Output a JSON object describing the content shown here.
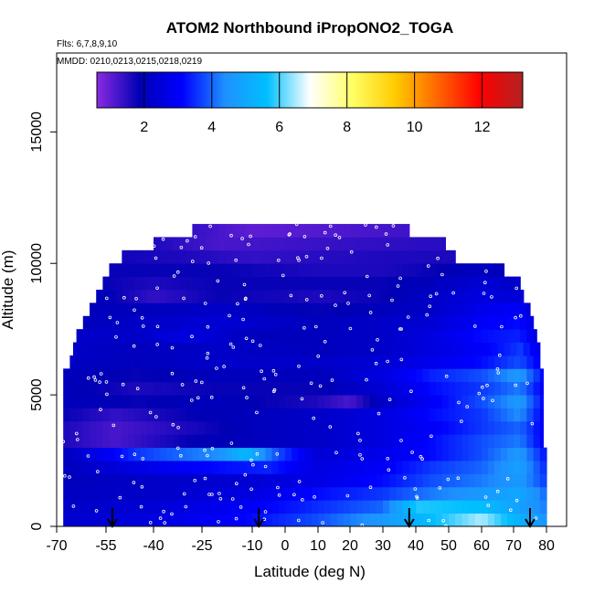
{
  "chart_data": {
    "type": "heatmap",
    "title": "ATOM2 Northbound iPropONO2_TOGA",
    "flights_label": "Flts: 6,7,8,9,10",
    "dates_label": "MMDD: 0210,0213,0215,0218,0219",
    "xlabel": "Latitude (deg N)",
    "ylabel": "Altitude (m)",
    "xlim": [
      -70,
      84
    ],
    "ylim": [
      0,
      18000
    ],
    "x_ticks": [
      -70,
      -55,
      -40,
      -25,
      -10,
      0,
      10,
      20,
      30,
      40,
      50,
      60,
      70,
      80
    ],
    "y_ticks": [
      0,
      5000,
      10000,
      15000
    ],
    "colorbar": {
      "range": [
        0.6,
        13.2
      ],
      "ticks": [
        2,
        4,
        6,
        8,
        10,
        12
      ],
      "colors": [
        "#8a2be2",
        "#0000b4",
        "#0000ff",
        "#1e90ff",
        "#00bfff",
        "#ffffff",
        "#ffff66",
        "#ffcc00",
        "#ff6600",
        "#ff0000",
        "#b22222"
      ]
    },
    "arrows_x": [
      -53,
      -8,
      38,
      75
    ],
    "altitude_bins": [
      {
        "base": 0,
        "top": 500,
        "lat_min": -68,
        "lat_max": 80,
        "profile": [
          [
            -68,
            2.3
          ],
          [
            -40,
            2.6
          ],
          [
            -10,
            3.2
          ],
          [
            10,
            3.8
          ],
          [
            30,
            4.6
          ],
          [
            45,
            5.6
          ],
          [
            60,
            6.5
          ],
          [
            72,
            5.2
          ],
          [
            80,
            4.5
          ]
        ]
      },
      {
        "base": 500,
        "top": 1000,
        "lat_min": -68,
        "lat_max": 80,
        "profile": [
          [
            -68,
            2.2
          ],
          [
            -40,
            2.4
          ],
          [
            -10,
            3.0
          ],
          [
            10,
            3.5
          ],
          [
            30,
            4.0
          ],
          [
            40,
            5.8
          ],
          [
            60,
            5.6
          ],
          [
            72,
            4.8
          ],
          [
            80,
            4.2
          ]
        ]
      },
      {
        "base": 1000,
        "top": 1500,
        "lat_min": -68,
        "lat_max": 80,
        "profile": [
          [
            -68,
            2.1
          ],
          [
            -40,
            2.2
          ],
          [
            -10,
            2.6
          ],
          [
            10,
            3.2
          ],
          [
            30,
            3.6
          ],
          [
            45,
            4.2
          ],
          [
            60,
            4.6
          ],
          [
            72,
            5.0
          ],
          [
            80,
            4.0
          ]
        ]
      },
      {
        "base": 1500,
        "top": 2000,
        "lat_min": -68,
        "lat_max": 80,
        "profile": [
          [
            -68,
            2.0
          ],
          [
            -40,
            2.2
          ],
          [
            -10,
            2.4
          ],
          [
            10,
            2.7
          ],
          [
            30,
            3.2
          ],
          [
            45,
            3.8
          ],
          [
            60,
            4.2
          ],
          [
            72,
            4.6
          ],
          [
            80,
            3.6
          ]
        ]
      },
      {
        "base": 2000,
        "top": 2500,
        "lat_min": -68,
        "lat_max": 80,
        "profile": [
          [
            -68,
            2.0
          ],
          [
            -40,
            2.8
          ],
          [
            -20,
            3.2
          ],
          [
            -5,
            3.4
          ],
          [
            10,
            2.6
          ],
          [
            30,
            3.0
          ],
          [
            45,
            3.6
          ],
          [
            60,
            4.0
          ],
          [
            72,
            4.8
          ],
          [
            80,
            3.4
          ]
        ]
      },
      {
        "base": 2500,
        "top": 3000,
        "lat_min": -68,
        "lat_max": 80,
        "profile": [
          [
            -68,
            2.0
          ],
          [
            -45,
            3.6
          ],
          [
            -20,
            4.4
          ],
          [
            -12,
            5.4
          ],
          [
            -4,
            4.0
          ],
          [
            10,
            2.4
          ],
          [
            30,
            2.8
          ],
          [
            45,
            3.2
          ],
          [
            60,
            3.8
          ],
          [
            72,
            4.6
          ],
          [
            80,
            3.2
          ]
        ]
      },
      {
        "base": 3000,
        "top": 3500,
        "lat_min": -68,
        "lat_max": 79,
        "profile": [
          [
            -68,
            1.6
          ],
          [
            -52,
            1.2
          ],
          [
            -30,
            1.8
          ],
          [
            -10,
            2.0
          ],
          [
            10,
            2.2
          ],
          [
            30,
            2.6
          ],
          [
            45,
            3.2
          ],
          [
            60,
            3.8
          ],
          [
            72,
            4.2
          ],
          [
            79,
            3.0
          ]
        ]
      },
      {
        "base": 3500,
        "top": 4000,
        "lat_min": -68,
        "lat_max": 79,
        "profile": [
          [
            -68,
            1.6
          ],
          [
            -52,
            1.2
          ],
          [
            -30,
            1.6
          ],
          [
            -10,
            2.0
          ],
          [
            10,
            2.2
          ],
          [
            30,
            2.6
          ],
          [
            45,
            3.0
          ],
          [
            60,
            3.6
          ],
          [
            72,
            4.0
          ],
          [
            79,
            3.0
          ]
        ]
      },
      {
        "base": 4000,
        "top": 4500,
        "lat_min": -68,
        "lat_max": 79,
        "profile": [
          [
            -68,
            1.8
          ],
          [
            -52,
            1.4
          ],
          [
            -30,
            1.8
          ],
          [
            -10,
            2.0
          ],
          [
            10,
            2.2
          ],
          [
            30,
            2.6
          ],
          [
            45,
            3.2
          ],
          [
            60,
            3.6
          ],
          [
            72,
            4.4
          ],
          [
            79,
            3.0
          ]
        ]
      },
      {
        "base": 4500,
        "top": 5000,
        "lat_min": -68,
        "lat_max": 79,
        "profile": [
          [
            -68,
            2.0
          ],
          [
            -45,
            1.8
          ],
          [
            -20,
            2.0
          ],
          [
            10,
            1.6
          ],
          [
            20,
            1.2
          ],
          [
            30,
            2.2
          ],
          [
            45,
            3.0
          ],
          [
            60,
            3.8
          ],
          [
            72,
            4.6
          ],
          [
            79,
            3.2
          ]
        ]
      },
      {
        "base": 5000,
        "top": 5500,
        "lat_min": -68,
        "lat_max": 79,
        "profile": [
          [
            -68,
            2.0
          ],
          [
            -45,
            1.6
          ],
          [
            -20,
            1.8
          ],
          [
            10,
            1.8
          ],
          [
            30,
            2.4
          ],
          [
            45,
            3.2
          ],
          [
            60,
            3.6
          ],
          [
            72,
            4.2
          ],
          [
            79,
            3.0
          ]
        ]
      },
      {
        "base": 5500,
        "top": 6000,
        "lat_min": -68,
        "lat_max": 79,
        "profile": [
          [
            -68,
            2.0
          ],
          [
            -45,
            1.8
          ],
          [
            -20,
            2.0
          ],
          [
            10,
            2.0
          ],
          [
            30,
            2.6
          ],
          [
            45,
            3.4
          ],
          [
            60,
            3.8
          ],
          [
            72,
            4.6
          ],
          [
            79,
            3.2
          ]
        ]
      },
      {
        "base": 6000,
        "top": 6500,
        "lat_min": -66,
        "lat_max": 78,
        "profile": [
          [
            -66,
            2.1
          ],
          [
            -45,
            2.0
          ],
          [
            -20,
            2.2
          ],
          [
            10,
            2.2
          ],
          [
            30,
            2.4
          ],
          [
            45,
            2.8
          ],
          [
            60,
            3.2
          ],
          [
            72,
            3.8
          ],
          [
            78,
            3.0
          ]
        ]
      },
      {
        "base": 6500,
        "top": 7000,
        "lat_min": -65,
        "lat_max": 78,
        "profile": [
          [
            -65,
            2.2
          ],
          [
            -45,
            2.0
          ],
          [
            -20,
            2.2
          ],
          [
            10,
            2.0
          ],
          [
            30,
            2.2
          ],
          [
            45,
            2.6
          ],
          [
            60,
            3.0
          ],
          [
            72,
            3.6
          ],
          [
            78,
            2.8
          ]
        ]
      },
      {
        "base": 7000,
        "top": 7500,
        "lat_min": -64,
        "lat_max": 77,
        "profile": [
          [
            -64,
            2.2
          ],
          [
            -45,
            2.2
          ],
          [
            -30,
            2.6
          ],
          [
            -10,
            2.0
          ],
          [
            10,
            2.0
          ],
          [
            30,
            2.2
          ],
          [
            45,
            2.6
          ],
          [
            60,
            3.2
          ],
          [
            72,
            3.4
          ],
          [
            77,
            2.6
          ]
        ]
      },
      {
        "base": 7500,
        "top": 8000,
        "lat_min": -62,
        "lat_max": 76,
        "profile": [
          [
            -62,
            2.0
          ],
          [
            -40,
            2.2
          ],
          [
            -20,
            2.4
          ],
          [
            10,
            2.0
          ],
          [
            30,
            2.2
          ],
          [
            45,
            2.4
          ],
          [
            60,
            3.0
          ],
          [
            72,
            3.2
          ],
          [
            76,
            2.6
          ]
        ]
      },
      {
        "base": 8000,
        "top": 8500,
        "lat_min": -60,
        "lat_max": 75,
        "profile": [
          [
            -60,
            2.0
          ],
          [
            -40,
            2.0
          ],
          [
            -20,
            2.2
          ],
          [
            10,
            1.8
          ],
          [
            30,
            2.0
          ],
          [
            45,
            2.2
          ],
          [
            60,
            2.8
          ],
          [
            72,
            3.0
          ],
          [
            75,
            2.4
          ]
        ]
      },
      {
        "base": 8500,
        "top": 9000,
        "lat_min": -58,
        "lat_max": 73,
        "profile": [
          [
            -58,
            2.0
          ],
          [
            -40,
            1.4
          ],
          [
            -20,
            1.8
          ],
          [
            10,
            1.6
          ],
          [
            30,
            1.8
          ],
          [
            45,
            2.2
          ],
          [
            60,
            2.6
          ],
          [
            73,
            2.4
          ]
        ]
      },
      {
        "base": 9000,
        "top": 9500,
        "lat_min": -56,
        "lat_max": 72,
        "profile": [
          [
            -56,
            1.8
          ],
          [
            -40,
            1.6
          ],
          [
            -20,
            1.8
          ],
          [
            10,
            1.8
          ],
          [
            30,
            1.8
          ],
          [
            45,
            2.0
          ],
          [
            60,
            2.4
          ],
          [
            72,
            2.2
          ]
        ]
      },
      {
        "base": 9500,
        "top": 10000,
        "lat_min": -54,
        "lat_max": 67,
        "profile": [
          [
            -54,
            1.8
          ],
          [
            -40,
            1.8
          ],
          [
            -20,
            1.8
          ],
          [
            10,
            1.6
          ],
          [
            30,
            1.6
          ],
          [
            45,
            1.8
          ],
          [
            60,
            2.0
          ],
          [
            67,
            2.0
          ]
        ]
      },
      {
        "base": 10000,
        "top": 10500,
        "lat_min": -50,
        "lat_max": 52,
        "profile": [
          [
            -50,
            1.7
          ],
          [
            -30,
            1.6
          ],
          [
            -10,
            1.4
          ],
          [
            10,
            1.5
          ],
          [
            30,
            1.6
          ],
          [
            52,
            1.6
          ]
        ]
      },
      {
        "base": 10500,
        "top": 11000,
        "lat_min": -40,
        "lat_max": 49,
        "profile": [
          [
            -40,
            1.6
          ],
          [
            -20,
            1.2
          ],
          [
            0,
            1.3
          ],
          [
            20,
            1.4
          ],
          [
            49,
            1.5
          ]
        ]
      },
      {
        "base": 11000,
        "top": 11500,
        "lat_min": -28,
        "lat_max": 38,
        "profile": [
          [
            -28,
            1.4
          ],
          [
            -10,
            1.0
          ],
          [
            10,
            1.1
          ],
          [
            38,
            1.3
          ]
        ]
      }
    ]
  }
}
